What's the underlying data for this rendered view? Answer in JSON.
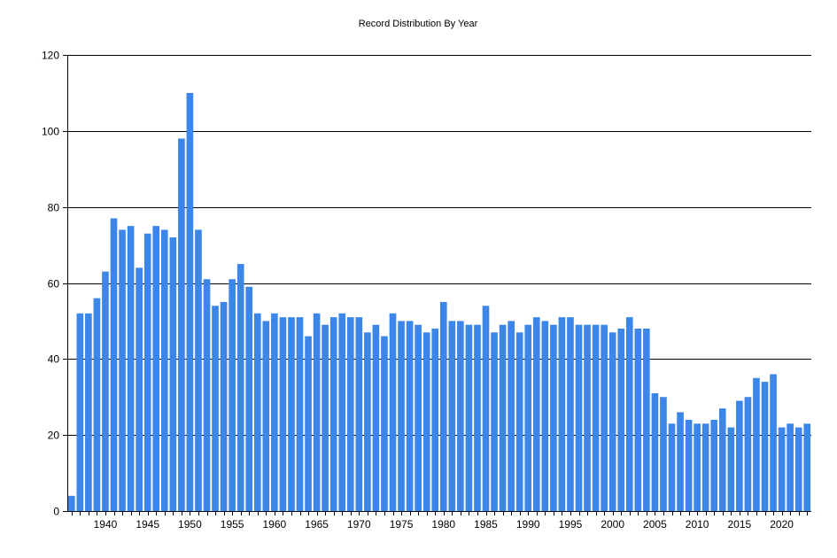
{
  "chart_data": {
    "type": "bar",
    "title": "Record Distribution By Year",
    "xlabel": "",
    "ylabel": "",
    "ylim": [
      0,
      120
    ],
    "y_ticks": [
      0,
      20,
      40,
      60,
      80,
      100,
      120
    ],
    "x_tick_labels": [
      "1940",
      "1945",
      "1950",
      "1955",
      "1960",
      "1965",
      "1970",
      "1975",
      "1980",
      "1985",
      "1990",
      "1995",
      "2000",
      "2005",
      "2010",
      "2015",
      "2020"
    ],
    "grid": "horizontal",
    "legend": "none",
    "bar_color": "#3b86e8",
    "categories": [
      1936,
      1937,
      1938,
      1939,
      1940,
      1941,
      1942,
      1943,
      1944,
      1945,
      1946,
      1947,
      1948,
      1949,
      1950,
      1951,
      1952,
      1953,
      1954,
      1955,
      1956,
      1957,
      1958,
      1959,
      1960,
      1961,
      1962,
      1963,
      1964,
      1965,
      1966,
      1967,
      1968,
      1969,
      1970,
      1971,
      1972,
      1973,
      1974,
      1975,
      1976,
      1977,
      1978,
      1979,
      1980,
      1981,
      1982,
      1983,
      1984,
      1985,
      1986,
      1987,
      1988,
      1989,
      1990,
      1991,
      1992,
      1993,
      1994,
      1995,
      1996,
      1997,
      1998,
      1999,
      2000,
      2001,
      2002,
      2003,
      2004,
      2005,
      2006,
      2007,
      2008,
      2009,
      2010,
      2011,
      2012,
      2013,
      2014,
      2015,
      2016,
      2017,
      2018,
      2019,
      2020,
      2021,
      2022,
      2023
    ],
    "values": [
      4,
      52,
      52,
      56,
      63,
      77,
      74,
      75,
      64,
      73,
      75,
      74,
      72,
      98,
      110,
      74,
      61,
      54,
      55,
      61,
      65,
      59,
      52,
      50,
      52,
      51,
      51,
      51,
      46,
      52,
      49,
      51,
      52,
      51,
      51,
      47,
      49,
      46,
      52,
      50,
      50,
      49,
      47,
      48,
      55,
      50,
      50,
      49,
      49,
      54,
      47,
      49,
      50,
      47,
      49,
      51,
      50,
      49,
      51,
      51,
      49,
      49,
      49,
      49,
      47,
      48,
      51,
      48,
      48,
      31,
      30,
      23,
      26,
      24,
      23,
      23,
      24,
      27,
      22,
      29,
      30,
      35,
      34,
      36,
      22,
      23,
      22,
      23
    ]
  }
}
